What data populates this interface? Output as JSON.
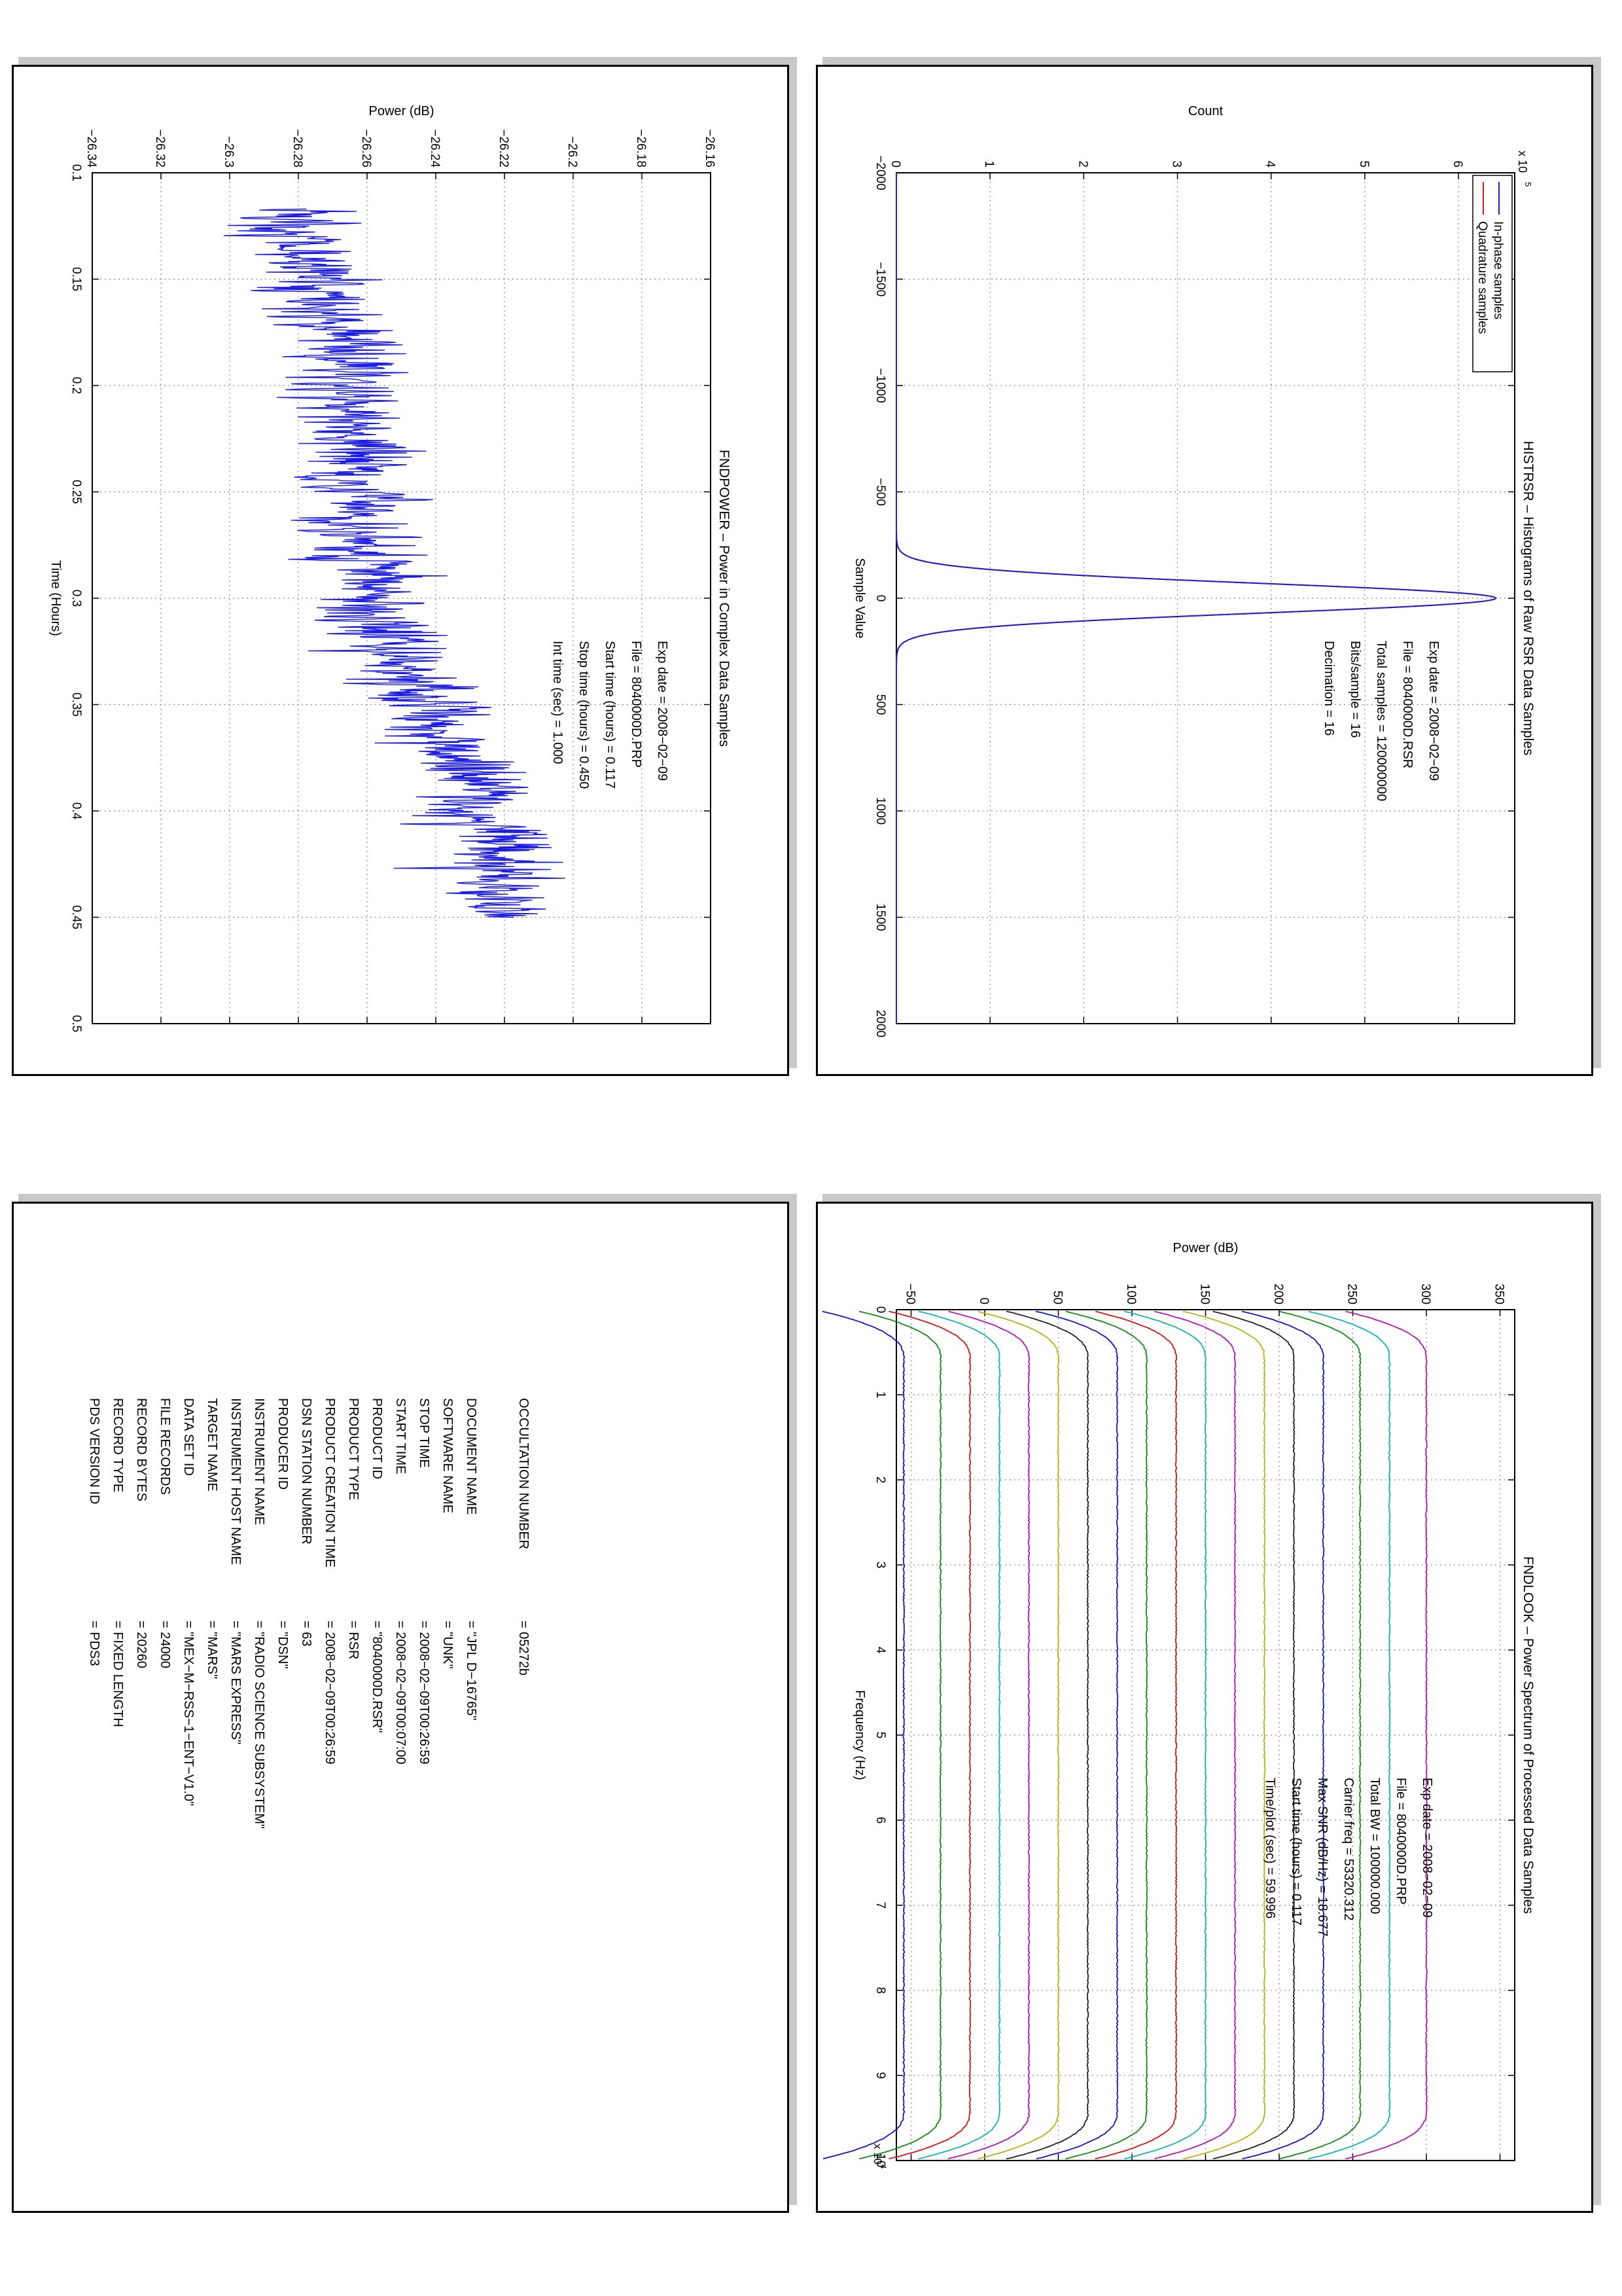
{
  "colors": {
    "in_phase": "#1f1fd0",
    "quadrature": "#d01f1f",
    "power": "#1a1ae6",
    "grid": "#8a8a8a"
  },
  "chart_data": [
    {
      "id": "histrsr",
      "type": "line",
      "title": "HISTRSR – Histograms of Raw RSR Data Samples",
      "xlabel": "Sample Value",
      "ylabel": "Count",
      "y_multiplier": "x 10",
      "y_multiplier_exp": "5",
      "xlim": [
        -2000,
        2000
      ],
      "ylim": [
        0,
        6.6
      ],
      "xticks": [
        -2000,
        -1500,
        -1000,
        -500,
        0,
        500,
        1000,
        1500,
        2000
      ],
      "yticks": [
        0,
        1,
        2,
        3,
        4,
        5,
        6
      ],
      "xtick_labels": [
        "−2000",
        "−1500",
        "−1000",
        "−500",
        "0",
        "500",
        "1000",
        "1500",
        "2000"
      ],
      "ytick_labels": [
        "0",
        "1",
        "2",
        "3",
        "4",
        "5",
        "6"
      ],
      "grid": true,
      "legend_placement": "top-left",
      "series": [
        {
          "name": "In-phase samples",
          "color": "#1f1fd0",
          "model": "gaussian",
          "peak": 6.4,
          "center": 0,
          "sigma": 70
        },
        {
          "name": "Quadrature samples",
          "color": "#d01f1f",
          "model": "gaussian",
          "peak": 6.4,
          "center": 0,
          "sigma": 70
        }
      ],
      "annotations": [
        "Exp date = 2008−02−09",
        "File = 8040000D.RSR",
        "Total samples =   120000000",
        "Bits/sample   =        16",
        "Decimation   =        16"
      ]
    },
    {
      "id": "fndpower",
      "type": "line",
      "title": "FNDPOWER – Power in Complex Data Samples",
      "xlabel": "Time (Hours)",
      "ylabel": "Power (dB)",
      "xlim": [
        0.1,
        0.5
      ],
      "ylim": [
        -26.34,
        -26.16
      ],
      "xticks": [
        0.1,
        0.15,
        0.2,
        0.25,
        0.3,
        0.35,
        0.4,
        0.45,
        0.5
      ],
      "yticks": [
        -26.34,
        -26.32,
        -26.3,
        -26.28,
        -26.26,
        -26.24,
        -26.22,
        -26.2,
        -26.18,
        -26.16
      ],
      "xtick_labels": [
        "0.1",
        "0.15",
        "0.2",
        "0.25",
        "0.3",
        "0.35",
        "0.4",
        "0.45",
        "0.5"
      ],
      "ytick_labels": [
        "−26.34",
        "−26.32",
        "−26.3",
        "−26.28",
        "−26.26",
        "−26.24",
        "−26.22",
        "−26.2",
        "−26.18",
        "−26.16"
      ],
      "grid": true,
      "series": [
        {
          "color": "#1a1ae6",
          "model": "noisy-trend",
          "x_start": 0.117,
          "x_end": 0.45,
          "y_start": -26.285,
          "y_end": -26.225,
          "noise_std": 0.008,
          "points": 1200
        }
      ],
      "annotations": [
        "Exp date = 2008−02−09",
        "File = 8040000D.PRP",
        "Start time (hours) =    0.117",
        "Stop time (hours)  =    0.450",
        "Int time (sec)     =    1.000"
      ]
    },
    {
      "id": "fndlook",
      "type": "line",
      "title": "FNDLOOK – Power Spectrum of Processed Data Samples",
      "xlabel": "Frequency (Hz)",
      "ylabel": "Power (dB)",
      "x_multiplier": "x 10",
      "x_multiplier_exp": "4",
      "xlim": [
        0,
        10
      ],
      "ylim": [
        -60,
        360
      ],
      "xticks": [
        0,
        1,
        2,
        3,
        4,
        5,
        6,
        7,
        8,
        9,
        10
      ],
      "yticks": [
        -50,
        0,
        50,
        100,
        150,
        200,
        250,
        300,
        350
      ],
      "xtick_labels": [
        "0",
        "1",
        "2",
        "3",
        "4",
        "5",
        "6",
        "7",
        "8",
        "9",
        "10"
      ],
      "ytick_labels": [
        "−50",
        "0",
        "50",
        "100",
        "150",
        "200",
        "250",
        "300",
        "350"
      ],
      "grid": true,
      "series": [
        {
          "color": "#1414c8",
          "level": -55
        },
        {
          "color": "#138a13",
          "level": -30
        },
        {
          "color": "#d41414",
          "level": -10
        },
        {
          "color": "#10b4b4",
          "level": 10
        },
        {
          "color": "#b414b4",
          "level": 30
        },
        {
          "color": "#b4b414",
          "level": 50
        },
        {
          "color": "#202020",
          "level": 70
        },
        {
          "color": "#1414c8",
          "level": 90
        },
        {
          "color": "#138a13",
          "level": 110
        },
        {
          "color": "#d41414",
          "level": 130
        },
        {
          "color": "#10b4b4",
          "level": 150
        },
        {
          "color": "#b414b4",
          "level": 170
        },
        {
          "color": "#b4b414",
          "level": 190
        },
        {
          "color": "#202020",
          "level": 210
        },
        {
          "color": "#1414c8",
          "level": 230
        },
        {
          "color": "#138a13",
          "level": 255
        },
        {
          "color": "#10b4b4",
          "level": 275
        },
        {
          "color": "#b414b4",
          "level": 300
        }
      ],
      "annotations": [
        "Exp date = 2008−02−09",
        "File = 8040000D.PRP",
        "Total BW =    100000.000",
        "Carrier freq =   53320.312",
        "Max SNR (dB/Hz) =    18.677",
        "Start time (hours) =    0.117",
        "Time/plot (sec) =    59.996"
      ]
    }
  ],
  "label_table": {
    "rows": [
      {
        "key": "PDS VERSION ID",
        "value": "=  PDS3"
      },
      {
        "key": "RECORD TYPE",
        "value": "=  FIXED LENGTH"
      },
      {
        "key": "RECORD BYTES",
        "value": "=  20260"
      },
      {
        "key": "FILE RECORDS",
        "value": "=  24000"
      },
      {
        "key": "DATA SET ID",
        "value": "=  \"MEX−M−RSS−1−ENT−V1.0\""
      },
      {
        "key": "TARGET NAME",
        "value": "=  \"MARS\""
      },
      {
        "key": "INSTRUMENT HOST NAME",
        "value": "=  \"MARS EXPRESS\""
      },
      {
        "key": "INSTRUMENT NAME",
        "value": "=  \"RADIO SCIENCE SUBSYSTEM\""
      },
      {
        "key": "PRODUCER ID",
        "value": "=  \"DSN\""
      },
      {
        "key": "DSN STATION NUMBER",
        "value": "=  63"
      },
      {
        "key": "PRODUCT CREATION TIME",
        "value": "=  2008−02−09T00:26:59"
      },
      {
        "key": "PRODUCT TYPE",
        "value": "=  RSR"
      },
      {
        "key": "PRODUCT ID",
        "value": "=  \"8040000D.RSR\""
      },
      {
        "key": "START TIME",
        "value": "=  2008−02−09T00:07:00"
      },
      {
        "key": "STOP TIME",
        "value": "=  2008−02−09T00:26:59"
      },
      {
        "key": "SOFTWARE NAME",
        "value": "=  \"UNK\""
      },
      {
        "key": "DOCUMENT NAME",
        "value": "=  \"JPL D−16765\""
      },
      {
        "key": "OCCULTATION NUMBER",
        "value": "=  05272b"
      }
    ]
  }
}
